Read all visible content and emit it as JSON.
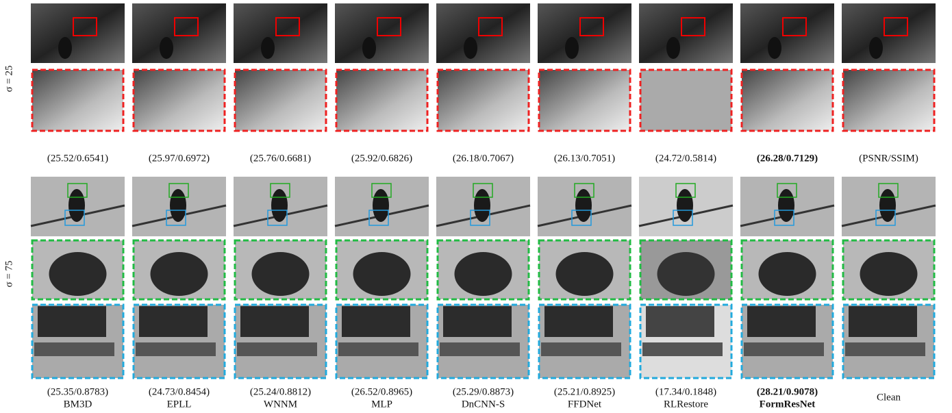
{
  "rows": [
    {
      "label": "σ = 25",
      "metrics": [
        "(25.52/0.6541)",
        "(25.97/0.6972)",
        "(25.76/0.6681)",
        "(25.92/0.6826)",
        "(26.18/0.7067)",
        "(26.13/0.7051)",
        "(24.72/0.5814)",
        "(26.28/0.7129)",
        "(PSNR/SSIM)"
      ]
    },
    {
      "label": "σ = 75",
      "metrics": [
        "(25.35/0.8783)",
        "(24.73/0.8454)",
        "(25.24/0.8812)",
        "(26.52/0.8965)",
        "(25.29/0.8873)",
        "(25.21/0.8925)",
        "(17.34/0.1848)",
        "(28.21/0.9078)"
      ]
    }
  ],
  "methods": [
    "BM3D",
    "EPLL",
    "WNNM",
    "MLP",
    "DnCNN-S",
    "FFDNet",
    "RLRestore",
    "FormResNet",
    "Clean"
  ]
}
